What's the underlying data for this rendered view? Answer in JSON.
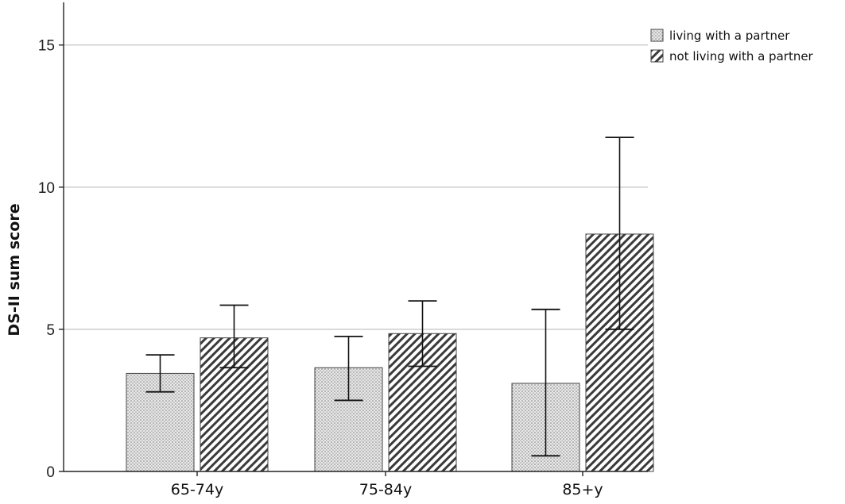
{
  "chart_data": {
    "type": "bar",
    "title": "",
    "xlabel": "",
    "ylabel": "DS-II sum score",
    "categories": [
      "65-74y",
      "75-84y",
      "85+y"
    ],
    "series": [
      {
        "name": "living with a partner",
        "values": [
          3.45,
          3.65,
          3.1
        ],
        "error_low": [
          2.8,
          2.5,
          0.55
        ],
        "error_high": [
          4.1,
          4.75,
          5.7
        ],
        "pattern": "dots"
      },
      {
        "name": "not living with a partner",
        "values": [
          4.7,
          4.85,
          8.35
        ],
        "error_low": [
          3.65,
          3.7,
          5.0
        ],
        "error_high": [
          5.85,
          6.0,
          11.75
        ],
        "pattern": "diagonal-hatch"
      }
    ],
    "ylim": [
      0,
      16.5
    ],
    "yticks": [
      0,
      5,
      10,
      15
    ],
    "grid": true,
    "legend_position": "top-right",
    "error_bars": true
  }
}
